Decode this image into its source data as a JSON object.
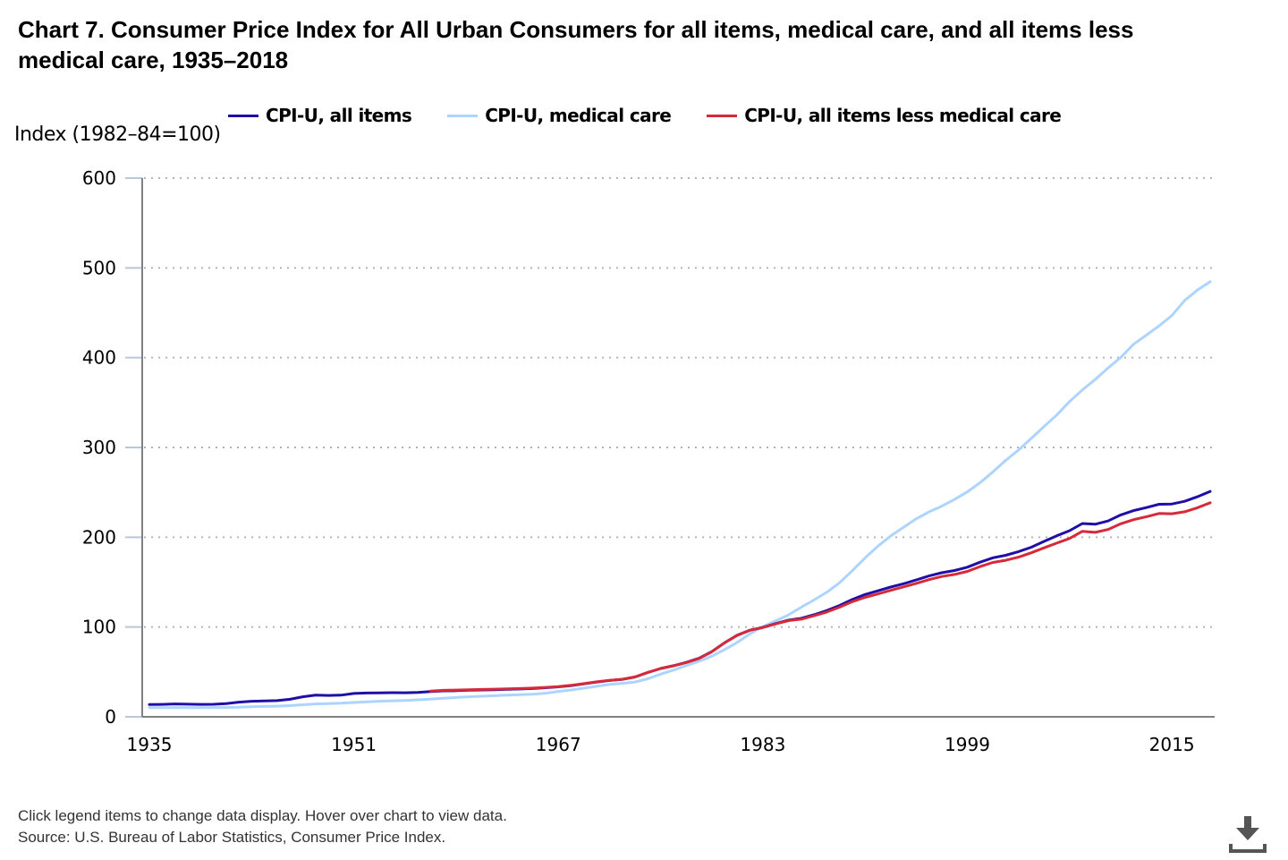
{
  "title": "Chart 7. Consumer Price Index for All Urban Consumers for all items, medical care, and all items less medical care, 1935–2018",
  "footer": {
    "note": "Click legend items to change data display. Hover over chart to view data.",
    "source": "Source: U.S. Bureau of Labor Statistics, Consumer Price Index."
  },
  "download_icon": "download-icon",
  "colors": {
    "all_items": "#1f0fa6",
    "medical_care": "#add4ff",
    "less_medical": "#d6293a",
    "grid": "#b3b3b3",
    "axis": "#808080"
  },
  "chart_data": {
    "type": "line",
    "title": "Chart 7. Consumer Price Index for All Urban Consumers for all items, medical care, and all items less medical care, 1935–2018",
    "xlabel": "",
    "ylabel": "Index (1982–84=100)",
    "xlim": [
      1935,
      2018
    ],
    "ylim": [
      0,
      600
    ],
    "yticks": [
      0,
      100,
      200,
      300,
      400,
      500,
      600
    ],
    "xticks": [
      1935,
      1951,
      1967,
      1983,
      1999,
      2015
    ],
    "grid": true,
    "legend_position": "top",
    "series": [
      {
        "name": "CPI-U, all items",
        "key": "all_items",
        "start_year": 1935,
        "values": [
          13.7,
          13.9,
          14.4,
          14.1,
          13.9,
          14.0,
          14.7,
          16.3,
          17.3,
          17.6,
          18.0,
          19.5,
          22.3,
          24.1,
          23.8,
          24.1,
          26.0,
          26.5,
          26.7,
          26.9,
          26.8,
          27.2,
          28.1,
          28.9,
          29.1,
          29.6,
          29.9,
          30.2,
          30.6,
          31.0,
          31.5,
          32.4,
          33.4,
          34.8,
          36.7,
          38.8,
          40.5,
          41.8,
          44.4,
          49.3,
          53.8,
          56.9,
          60.6,
          65.2,
          72.6,
          82.4,
          90.9,
          96.5,
          99.6,
          103.9,
          107.6,
          109.6,
          113.6,
          118.3,
          124.0,
          130.7,
          136.2,
          140.3,
          144.5,
          148.2,
          152.4,
          156.9,
          160.5,
          163.0,
          166.6,
          172.2,
          177.1,
          179.9,
          184.0,
          188.9,
          195.3,
          201.6,
          207.3,
          215.3,
          214.5,
          218.1,
          224.9,
          229.6,
          233.0,
          236.7,
          237.0,
          240.0,
          245.1,
          251.1
        ]
      },
      {
        "name": "CPI-U, medical care",
        "key": "medical_care",
        "start_year": 1935,
        "values": [
          10.2,
          10.2,
          10.3,
          10.3,
          10.3,
          10.4,
          10.4,
          10.7,
          11.2,
          11.6,
          11.9,
          12.5,
          13.5,
          14.4,
          14.8,
          15.1,
          15.9,
          16.7,
          17.3,
          17.8,
          18.2,
          18.9,
          19.7,
          20.6,
          21.5,
          22.3,
          22.9,
          23.5,
          24.1,
          24.6,
          25.2,
          26.3,
          28.2,
          29.9,
          31.9,
          34.0,
          36.1,
          37.3,
          38.8,
          42.4,
          47.5,
          52.0,
          57.0,
          61.8,
          67.5,
          74.9,
          82.9,
          92.5,
          100.6,
          106.8,
          113.5,
          122.0,
          130.1,
          138.6,
          149.3,
          162.8,
          177.0,
          190.1,
          201.4,
          211.0,
          220.5,
          228.2,
          234.6,
          242.1,
          250.6,
          260.8,
          272.8,
          285.6,
          297.1,
          310.1,
          323.2,
          336.2,
          351.1,
          364.1,
          375.6,
          388.4,
          400.3,
          414.9,
          425.1,
          435.3,
          446.8,
          463.7,
          475.3,
          484.7
        ]
      },
      {
        "name": "CPI-U, all items less medical care",
        "key": "less_medical",
        "start_year": 1957,
        "values": [
          28.7,
          29.5,
          29.8,
          30.2,
          30.5,
          30.8,
          31.1,
          31.5,
          32.0,
          32.8,
          33.7,
          35.1,
          37.0,
          39.0,
          40.6,
          41.8,
          44.5,
          49.5,
          53.8,
          56.8,
          60.4,
          64.9,
          72.4,
          82.3,
          90.9,
          96.6,
          99.5,
          103.5,
          107.1,
          108.7,
          112.5,
          116.7,
          122.1,
          128.3,
          133.1,
          136.8,
          140.8,
          144.7,
          148.6,
          152.8,
          156.3,
          158.6,
          162.0,
          167.3,
          171.9,
          174.3,
          177.8,
          182.7,
          188.2,
          193.5,
          198.6,
          206.6,
          205.4,
          208.6,
          215.0,
          219.6,
          222.9,
          226.4,
          226.1,
          228.3,
          232.8,
          238.4
        ]
      }
    ]
  },
  "legend": [
    {
      "label": "CPI-U, all items",
      "key": "all_items"
    },
    {
      "label": "CPI-U, medical care",
      "key": "medical_care"
    },
    {
      "label": "CPI-U, all items less medical care",
      "key": "less_medical"
    }
  ]
}
